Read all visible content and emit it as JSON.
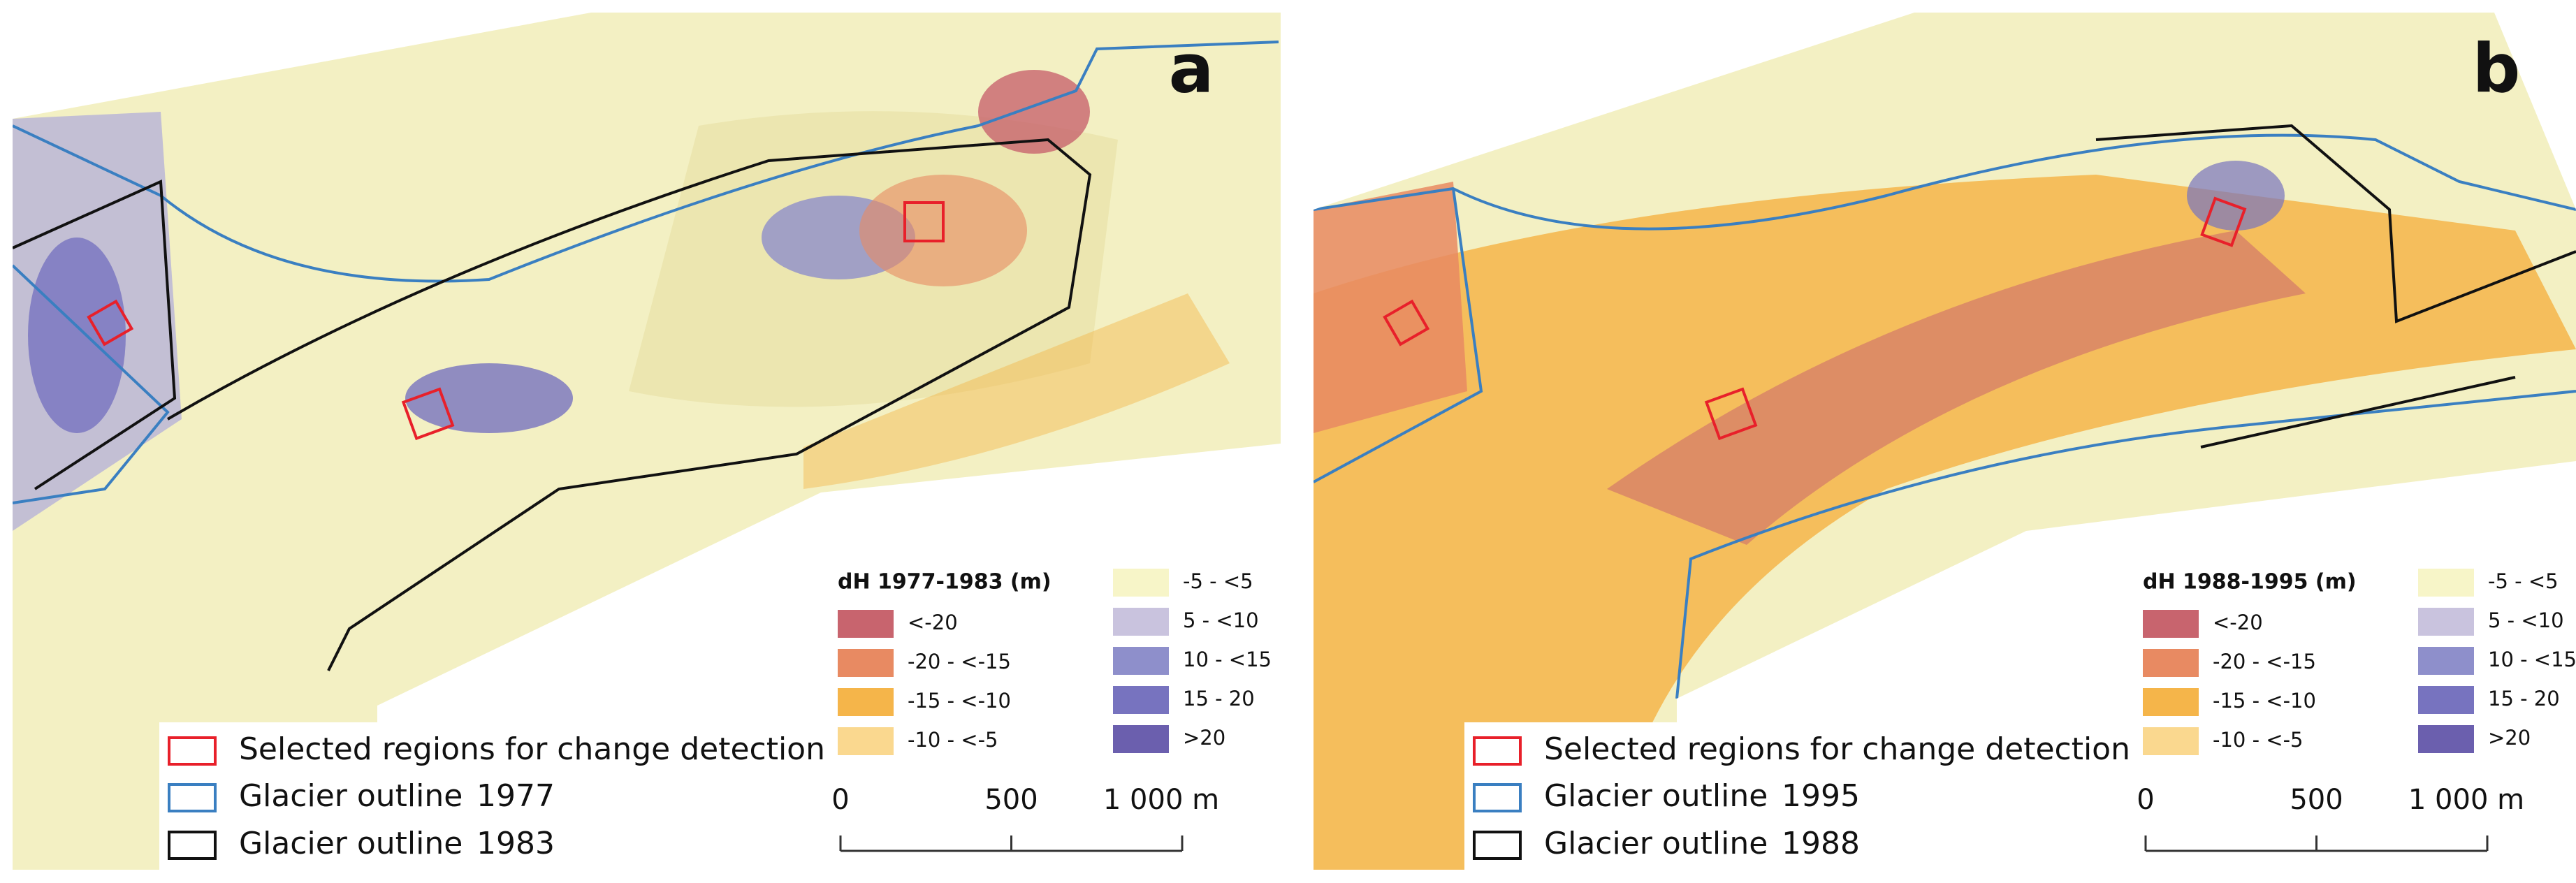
{
  "panels": [
    {
      "label": "a",
      "legend_title": "dH 1977-1983 (m)",
      "regions_label": "Selected regions for change detection",
      "outlines": [
        {
          "label": "Glacier outline",
          "year": "1977",
          "color": "#3a7fc1"
        },
        {
          "label": "Glacier outline",
          "year": "1983",
          "color": "#111111"
        }
      ],
      "classes": [
        {
          "label": "<-20",
          "color": "#c8646e"
        },
        {
          "label": "-20 - <-15",
          "color": "#e88a62"
        },
        {
          "label": "-15 - <-10",
          "color": "#f5b54a"
        },
        {
          "label": "-10 - <-5",
          "color": "#fad88f"
        },
        {
          "label": "-5 - <5",
          "color": "#f7f5c8"
        },
        {
          "label": "5 - <10",
          "color": "#c9c3de"
        },
        {
          "label": "10 - <15",
          "color": "#8e8fcb"
        },
        {
          "label": "15 - 20",
          "color": "#7773bf"
        },
        {
          "label": ">20",
          "color": "#6b5fae"
        }
      ],
      "scale_ticks": [
        0,
        500,
        {
          "value": 1000,
          "label": "1 000 m"
        }
      ]
    },
    {
      "label": "b",
      "legend_title": "dH 1988-1995 (m)",
      "regions_label": "Selected regions for change detection",
      "outlines": [
        {
          "label": "Glacier outline",
          "year": "1995",
          "color": "#3a7fc1"
        },
        {
          "label": "Glacier outline",
          "year": "1988",
          "color": "#111111"
        }
      ],
      "classes": [
        {
          "label": "<-20",
          "color": "#c8646e"
        },
        {
          "label": "-20 - <-15",
          "color": "#e88a62"
        },
        {
          "label": "-15 - <-10",
          "color": "#f5b54a"
        },
        {
          "label": "-10 - <-5",
          "color": "#fad88f"
        },
        {
          "label": "-5 - <5",
          "color": "#f7f5c8"
        },
        {
          "label": "5 - <10",
          "color": "#c9c3de"
        },
        {
          "label": "10 - <15",
          "color": "#8e8fcb"
        },
        {
          "label": "15 - 20",
          "color": "#7773bf"
        },
        {
          "label": ">20",
          "color": "#6b5fae"
        }
      ],
      "scale_ticks": [
        0,
        500,
        {
          "value": 1000,
          "label": "1 000 m"
        }
      ]
    }
  ]
}
